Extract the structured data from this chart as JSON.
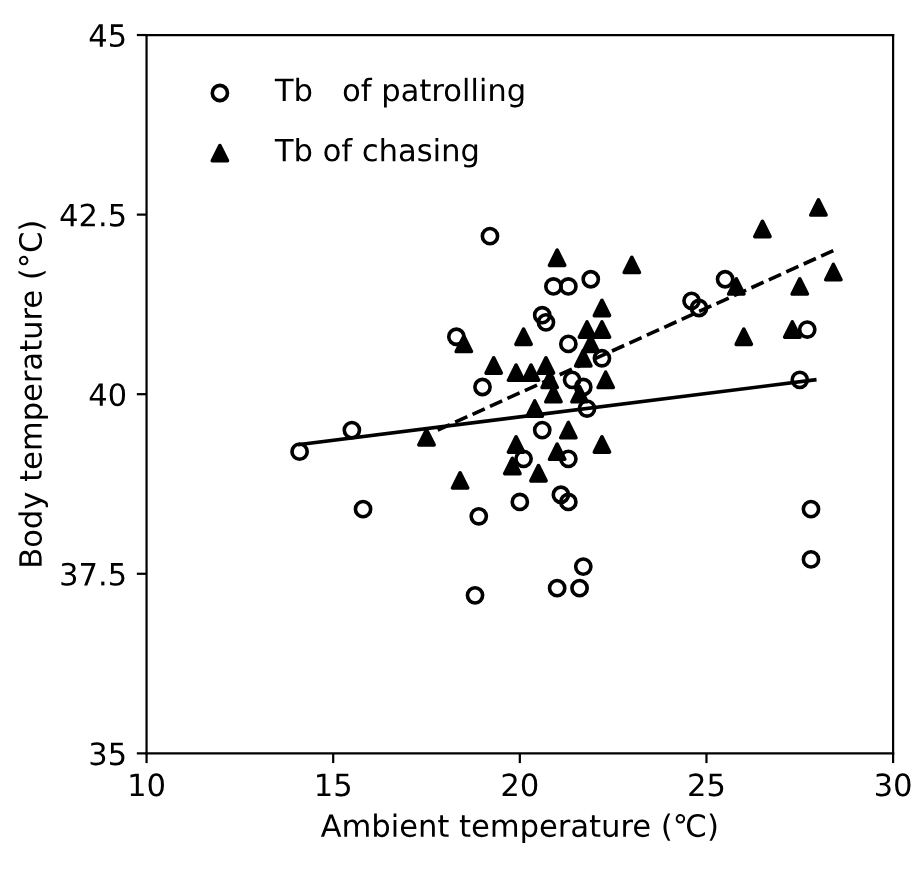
{
  "chart_data": {
    "type": "scatter",
    "xlabel": "Ambient temperature (℃)",
    "ylabel": "Body temperature (°C)",
    "xlim": [
      10,
      30
    ],
    "xticks": [
      10,
      15,
      20,
      25,
      30
    ],
    "ylim": [
      35,
      45
    ],
    "yticks": [
      35,
      37.5,
      40,
      42.5,
      45
    ],
    "grid": false,
    "legend": "top left",
    "series": [
      {
        "name": "Tb   of patrolling",
        "color": "#000000",
        "marker": "circle",
        "x": [
          14.1,
          15.5,
          15.8,
          19.2,
          18.3,
          19.0,
          18.9,
          18.8,
          20.0,
          20.1,
          20.6,
          20.6,
          20.7,
          20.9,
          21.3,
          21.3,
          21.3,
          21.1,
          21.3,
          21.0,
          21.6,
          21.7,
          21.9,
          21.7,
          21.8,
          21.4,
          22.2,
          24.6,
          24.8,
          25.5,
          27.5,
          27.7,
          27.8,
          27.8
        ],
        "values": [
          39.2,
          39.5,
          38.4,
          42.2,
          40.8,
          40.1,
          38.3,
          37.2,
          38.5,
          39.1,
          39.5,
          41.1,
          41.0,
          41.5,
          41.5,
          40.7,
          39.1,
          38.6,
          38.5,
          37.3,
          37.3,
          37.6,
          41.6,
          40.1,
          39.8,
          40.2,
          40.5,
          41.3,
          41.2,
          41.6,
          40.2,
          40.9,
          38.4,
          37.7
        ]
      },
      {
        "name": "Tb of chasing",
        "color": "#000000",
        "marker": "triangle",
        "x": [
          21.0,
          23.0,
          26.5,
          28.0,
          28.4,
          27.5,
          25.8,
          26.0,
          27.3,
          18.5,
          19.3,
          20.1,
          19.9,
          20.3,
          20.7,
          20.8,
          20.9,
          20.4,
          17.5,
          18.4,
          19.9,
          19.8,
          20.5,
          21.0,
          21.3,
          22.2,
          21.6,
          21.7,
          21.8,
          22.2,
          22.2,
          22.3,
          21.9
        ],
        "values": [
          41.9,
          41.8,
          42.3,
          42.6,
          41.7,
          41.5,
          41.5,
          40.8,
          40.9,
          40.7,
          40.4,
          40.8,
          40.3,
          40.3,
          40.4,
          40.2,
          40.0,
          39.8,
          39.4,
          38.8,
          39.3,
          39.0,
          38.9,
          39.2,
          39.5,
          39.3,
          40.0,
          40.5,
          40.9,
          41.2,
          40.9,
          40.2,
          40.7
        ]
      },
      {
        "type": "line",
        "color": "#000000",
        "line_style": "solid",
        "marker": "none",
        "x": [
          14.1,
          27.9
        ],
        "values": [
          39.3,
          40.2
        ]
      },
      {
        "type": "line",
        "color": "#000000",
        "line_style": "dashed",
        "marker": "none",
        "x": [
          17.8,
          28.4
        ],
        "values": [
          39.5,
          42.0
        ]
      }
    ]
  }
}
